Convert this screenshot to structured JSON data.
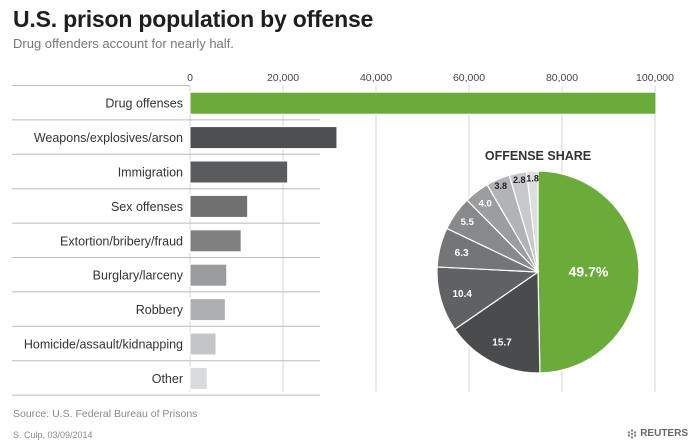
{
  "header": {
    "title": "U.S. prison population by offense",
    "subtitle": "Drug offenders account for nearly half."
  },
  "footer": {
    "source": "Source: U.S. Federal Bureau of Prisons",
    "credit": "S. Culp, 03/09/2014",
    "logo": "REUTERS"
  },
  "colors": {
    "drug": "#6aab3a",
    "grays": [
      "#4d4e50",
      "#5a5b5d",
      "#6f7072",
      "#7f8082",
      "#9a9b9d",
      "#aeafb1",
      "#c4c5c7",
      "#dadbdc"
    ],
    "pie_drug": "#6aab3a",
    "pie_grays": [
      "#4a4b4d",
      "#606163",
      "#747577",
      "#88898b",
      "#9c9d9f",
      "#b2b3b5",
      "#c8c9cb",
      "#dddedf"
    ]
  },
  "chart_data": [
    {
      "type": "bar",
      "orientation": "horizontal",
      "categories": [
        "Drug offenses",
        "Weapons/explosives/arson",
        "Immigration",
        "Sex offenses",
        "Extortion/bribery/fraud",
        "Burglary/larceny",
        "Robbery",
        "Homicide/assault/kidnapping",
        "Other"
      ],
      "values": [
        100200,
        31600,
        21000,
        12400,
        11000,
        7900,
        7600,
        5600,
        3700
      ],
      "xlim": [
        0,
        100000
      ],
      "xticks": [
        0,
        20000,
        40000,
        60000,
        80000,
        100000
      ],
      "xtick_labels": [
        "0",
        "20,000",
        "40,000",
        "60,000",
        "80,000",
        "100,000"
      ],
      "axis_position": "top",
      "grid": true
    },
    {
      "type": "pie",
      "title": "OFFENSE SHARE",
      "labels": [
        "49.7%",
        "15.7",
        "10.4",
        "6.3",
        "5.5",
        "4.0",
        "3.8",
        "2.8",
        "1.8"
      ],
      "values": [
        49.7,
        15.7,
        10.4,
        6.3,
        5.5,
        4.0,
        3.8,
        2.8,
        1.8
      ]
    }
  ]
}
